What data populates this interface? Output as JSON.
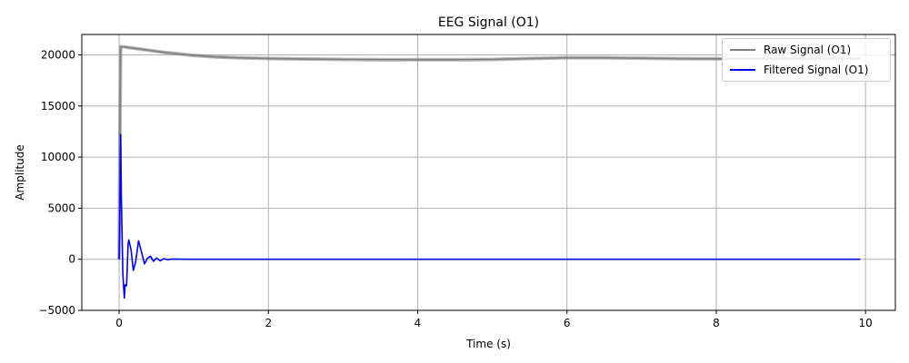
{
  "chart_data": {
    "type": "line",
    "title": "EEG Signal (O1)",
    "xlabel": "Time (s)",
    "ylabel": "Amplitude",
    "xlim": [
      -0.5,
      10.4
    ],
    "ylim": [
      -5000,
      22000
    ],
    "xticks": [
      0,
      2,
      4,
      6,
      8,
      10
    ],
    "xtick_labels": [
      "0",
      "2",
      "4",
      "6",
      "8",
      "10"
    ],
    "yticks": [
      -5000,
      0,
      5000,
      10000,
      15000,
      20000
    ],
    "ytick_labels": [
      "−5000",
      "0",
      "5000",
      "10000",
      "15000",
      "20000"
    ],
    "grid": true,
    "legend": "top-right",
    "series": [
      {
        "name": "Raw Signal (O1)",
        "color": "#808080",
        "x": [
          0,
          0.02,
          0.05,
          0.1,
          0.2,
          0.4,
          0.6,
          0.8,
          1.0,
          1.3,
          1.6,
          2.0,
          2.5,
          3.0,
          3.5,
          4.0,
          4.5,
          5.0,
          5.5,
          6.0,
          6.5,
          7.0,
          7.5,
          8.0,
          8.5,
          9.0,
          9.5,
          9.93
        ],
        "y": [
          0,
          20800,
          20800,
          20750,
          20650,
          20450,
          20250,
          20100,
          19950,
          19800,
          19720,
          19650,
          19600,
          19560,
          19540,
          19530,
          19530,
          19560,
          19650,
          19720,
          19720,
          19680,
          19640,
          19620,
          19620,
          19620,
          19640,
          19650
        ]
      },
      {
        "name": "Filtered Signal (O1)",
        "color": "#0000ff",
        "x": [
          0,
          0.01,
          0.02,
          0.03,
          0.05,
          0.07,
          0.08,
          0.1,
          0.12,
          0.13,
          0.16,
          0.19,
          0.22,
          0.26,
          0.3,
          0.34,
          0.38,
          0.42,
          0.46,
          0.5,
          0.55,
          0.6,
          0.65,
          0.7,
          0.8,
          0.9,
          1.0,
          1.5,
          2.0,
          3.0,
          4.0,
          5.0,
          6.0,
          7.0,
          8.0,
          9.0,
          9.93
        ],
        "y": [
          0,
          5000,
          12200,
          6000,
          -1500,
          -3800,
          -2500,
          -2600,
          1500,
          1900,
          900,
          -1100,
          -300,
          1800,
          700,
          -450,
          100,
          300,
          -200,
          120,
          -150,
          60,
          -40,
          20,
          10,
          0,
          0,
          0,
          0,
          0,
          0,
          0,
          0,
          0,
          0,
          0,
          0
        ]
      }
    ]
  }
}
